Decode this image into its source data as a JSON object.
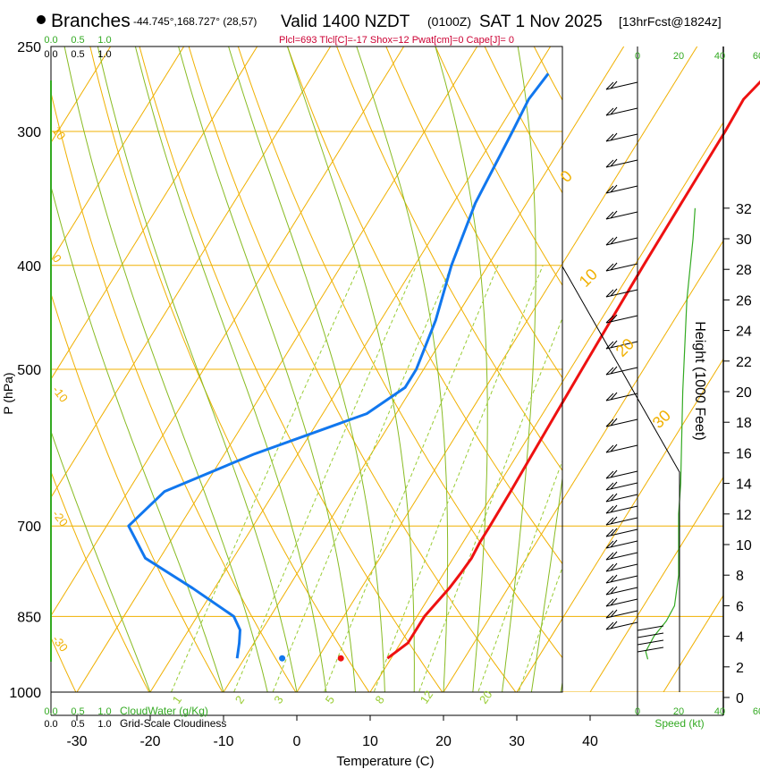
{
  "header": {
    "location": "Branches",
    "coords": "-44.745°,168.727° (28,57)",
    "valid_main": "Valid 1400 NZDT",
    "valid_utc": "(0100Z)",
    "date": "SAT 1 Nov 2025",
    "forecast": "[13hrFcst@1824z]",
    "indices": "Plcl=693 Tlcl[C]=-17 Shox=12 Pwat[cm]=0 Cape[J]= 0"
  },
  "colors": {
    "temperature": "#ee1111",
    "dewpoint": "#1177ee",
    "isotherm": "#f0b000",
    "mixing_ratio": "#99cc33",
    "adiabat": "#88bb22",
    "legend_green": "#33aa22"
  },
  "chart_data": {
    "type": "line",
    "title": "Branches",
    "xlabel": "Temperature (C)",
    "ylabel": "P (hPa)",
    "right_axis_label": "Height (1000 Feet)",
    "x_ticks": [
      "-30",
      "-20",
      "-10",
      "0",
      "10",
      "20",
      "30",
      "40"
    ],
    "p_ticks": [
      "250",
      "300",
      "400",
      "500",
      "700",
      "850",
      "1000"
    ],
    "height_ticks": [
      "0",
      "2",
      "4",
      "6",
      "8",
      "10",
      "12",
      "14",
      "16",
      "18",
      "20",
      "22",
      "24",
      "26",
      "28",
      "30",
      "32"
    ],
    "isotherm_labels": [
      "-30",
      "-20",
      "-10",
      "0",
      "10",
      "20",
      "30"
    ],
    "adiabat_labels": [
      "0",
      "10",
      "20",
      "30"
    ],
    "mixing_ratio_labels": [
      "1",
      "2",
      "3",
      "5",
      "8",
      "12",
      "20"
    ],
    "cloud_scale_ticks": [
      "0.0",
      "0.5",
      "1.0"
    ],
    "cloud_water_label": "CloudWater (g/Kg)",
    "cloudiness_label": "Grid-Scale Cloudiness",
    "wind_speed_ticks": [
      "0",
      "20",
      "40",
      "60"
    ],
    "wind_speed_label": "Speed (kt)",
    "series": [
      {
        "name": "Temperature",
        "points": [
          {
            "p": 930,
            "t": 9.5
          },
          {
            "p": 920,
            "t": 10
          },
          {
            "p": 900,
            "t": 11
          },
          {
            "p": 875,
            "t": 11
          },
          {
            "p": 850,
            "t": 11
          },
          {
            "p": 825,
            "t": 11.5
          },
          {
            "p": 800,
            "t": 12
          },
          {
            "p": 775,
            "t": 12.3
          },
          {
            "p": 750,
            "t": 12.5
          },
          {
            "p": 725,
            "t": 12.3
          },
          {
            "p": 700,
            "t": 12.3
          },
          {
            "p": 650,
            "t": 12.2
          },
          {
            "p": 600,
            "t": 12
          },
          {
            "p": 550,
            "t": 11.8
          },
          {
            "p": 500,
            "t": 11.6
          },
          {
            "p": 450,
            "t": 11.4
          },
          {
            "p": 400,
            "t": 11.2
          },
          {
            "p": 350,
            "t": 11.1
          },
          {
            "p": 300,
            "t": 11
          },
          {
            "p": 280,
            "t": 10.8
          },
          {
            "p": 265,
            "t": 12
          }
        ]
      },
      {
        "name": "Dewpoint",
        "points": [
          {
            "p": 930,
            "t": -11
          },
          {
            "p": 915,
            "t": -11.5
          },
          {
            "p": 900,
            "t": -12
          },
          {
            "p": 875,
            "t": -13
          },
          {
            "p": 850,
            "t": -15
          },
          {
            "p": 800,
            "t": -23
          },
          {
            "p": 750,
            "t": -32
          },
          {
            "p": 700,
            "t": -37
          },
          {
            "p": 650,
            "t": -35
          },
          {
            "p": 600,
            "t": -26
          },
          {
            "p": 550,
            "t": -14
          },
          {
            "p": 520,
            "t": -11
          },
          {
            "p": 500,
            "t": -11
          },
          {
            "p": 450,
            "t": -12.5
          },
          {
            "p": 400,
            "t": -15
          },
          {
            "p": 350,
            "t": -17
          },
          {
            "p": 300,
            "t": -18
          },
          {
            "p": 280,
            "t": -18.5
          },
          {
            "p": 265,
            "t": -18
          }
        ]
      }
    ],
    "surface_points": [
      {
        "name": "Temperature",
        "p": 930,
        "t": 6
      },
      {
        "name": "Dewpoint",
        "p": 930,
        "t": -2
      }
    ],
    "wind_profile_kt": [
      {
        "h_kft": 2.5,
        "kt": 5
      },
      {
        "h_kft": 3,
        "kt": 4
      },
      {
        "h_kft": 4,
        "kt": 8
      },
      {
        "h_kft": 5,
        "kt": 14
      },
      {
        "h_kft": 6,
        "kt": 18
      },
      {
        "h_kft": 8,
        "kt": 20
      },
      {
        "h_kft": 12,
        "kt": 20
      },
      {
        "h_kft": 14,
        "kt": 21
      },
      {
        "h_kft": 20,
        "kt": 22
      },
      {
        "h_kft": 26,
        "kt": 24
      },
      {
        "h_kft": 30,
        "kt": 27
      },
      {
        "h_kft": 32,
        "kt": 28
      }
    ]
  }
}
